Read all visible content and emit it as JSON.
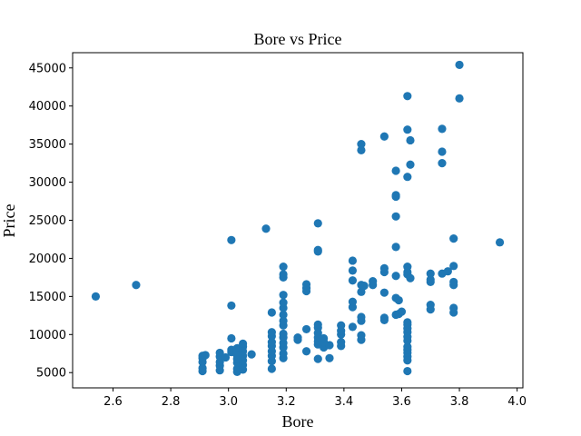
{
  "chart_data": {
    "type": "scatter",
    "title": "Bore vs Price",
    "xlabel": "Bore",
    "ylabel": "Price",
    "xlim": [
      2.46,
      4.02
    ],
    "ylim": [
      3000,
      47000
    ],
    "xticks": [
      "2.6",
      "2.8",
      "3.0",
      "3.2",
      "3.4",
      "3.6",
      "3.8",
      "4.0"
    ],
    "yticks": [
      "5000",
      "10000",
      "15000",
      "20000",
      "25000",
      "30000",
      "35000",
      "40000",
      "45000"
    ],
    "grid": false,
    "marker_color": "#1f77b4",
    "points": [
      [
        2.54,
        15000
      ],
      [
        2.68,
        16500
      ],
      [
        2.91,
        5200
      ],
      [
        2.91,
        5600
      ],
      [
        2.91,
        6400
      ],
      [
        2.91,
        6900
      ],
      [
        2.91,
        7200
      ],
      [
        2.92,
        7300
      ],
      [
        2.97,
        5300
      ],
      [
        2.97,
        5900
      ],
      [
        2.97,
        6400
      ],
      [
        2.97,
        7100
      ],
      [
        2.97,
        7600
      ],
      [
        2.99,
        7000
      ],
      [
        3.01,
        13800
      ],
      [
        3.01,
        22400
      ],
      [
        3.01,
        9500
      ],
      [
        3.01,
        7700
      ],
      [
        3.01,
        8000
      ],
      [
        3.03,
        5100
      ],
      [
        3.03,
        5500
      ],
      [
        3.03,
        6300
      ],
      [
        3.03,
        6800
      ],
      [
        3.03,
        7300
      ],
      [
        3.03,
        7800
      ],
      [
        3.03,
        8200
      ],
      [
        3.05,
        5400
      ],
      [
        3.05,
        6000
      ],
      [
        3.05,
        6600
      ],
      [
        3.05,
        7200
      ],
      [
        3.05,
        7800
      ],
      [
        3.05,
        8400
      ],
      [
        3.05,
        8800
      ],
      [
        3.08,
        7400
      ],
      [
        3.13,
        23900
      ],
      [
        3.15,
        5500
      ],
      [
        3.15,
        6500
      ],
      [
        3.15,
        7200
      ],
      [
        3.15,
        7800
      ],
      [
        3.15,
        8500
      ],
      [
        3.15,
        9000
      ],
      [
        3.15,
        9800
      ],
      [
        3.15,
        10300
      ],
      [
        3.15,
        12900
      ],
      [
        3.19,
        6900
      ],
      [
        3.19,
        7500
      ],
      [
        3.19,
        8300
      ],
      [
        3.19,
        8900
      ],
      [
        3.19,
        9600
      ],
      [
        3.19,
        10100
      ],
      [
        3.19,
        11200
      ],
      [
        3.19,
        11800
      ],
      [
        3.19,
        12600
      ],
      [
        3.19,
        13500
      ],
      [
        3.19,
        14200
      ],
      [
        3.19,
        15200
      ],
      [
        3.19,
        17500
      ],
      [
        3.19,
        17900
      ],
      [
        3.19,
        18900
      ],
      [
        3.24,
        9300
      ],
      [
        3.24,
        9600
      ],
      [
        3.27,
        7800
      ],
      [
        3.27,
        10700
      ],
      [
        3.27,
        15700
      ],
      [
        3.27,
        16100
      ],
      [
        3.27,
        16600
      ],
      [
        3.31,
        6800
      ],
      [
        3.31,
        8700
      ],
      [
        3.31,
        9100
      ],
      [
        3.31,
        9600
      ],
      [
        3.31,
        10200
      ],
      [
        3.31,
        10900
      ],
      [
        3.31,
        11300
      ],
      [
        3.31,
        20900
      ],
      [
        3.31,
        21100
      ],
      [
        3.31,
        24600
      ],
      [
        3.33,
        8300
      ],
      [
        3.33,
        9000
      ],
      [
        3.33,
        9500
      ],
      [
        3.35,
        6900
      ],
      [
        3.35,
        8600
      ],
      [
        3.39,
        8500
      ],
      [
        3.39,
        9000
      ],
      [
        3.39,
        10000
      ],
      [
        3.39,
        10500
      ],
      [
        3.39,
        11200
      ],
      [
        3.43,
        11000
      ],
      [
        3.43,
        13600
      ],
      [
        3.43,
        14300
      ],
      [
        3.43,
        17100
      ],
      [
        3.43,
        18400
      ],
      [
        3.43,
        19700
      ],
      [
        3.46,
        9300
      ],
      [
        3.46,
        9900
      ],
      [
        3.46,
        11800
      ],
      [
        3.46,
        12300
      ],
      [
        3.46,
        15600
      ],
      [
        3.46,
        16500
      ],
      [
        3.46,
        34200
      ],
      [
        3.46,
        35000
      ],
      [
        3.47,
        16400
      ],
      [
        3.5,
        16500
      ],
      [
        3.5,
        17000
      ],
      [
        3.54,
        11900
      ],
      [
        3.54,
        12200
      ],
      [
        3.54,
        15500
      ],
      [
        3.54,
        18200
      ],
      [
        3.54,
        18700
      ],
      [
        3.54,
        36000
      ],
      [
        3.58,
        12600
      ],
      [
        3.58,
        14800
      ],
      [
        3.58,
        17700
      ],
      [
        3.58,
        21500
      ],
      [
        3.58,
        25500
      ],
      [
        3.58,
        28100
      ],
      [
        3.58,
        28300
      ],
      [
        3.58,
        31500
      ],
      [
        3.59,
        12700
      ],
      [
        3.59,
        14500
      ],
      [
        3.6,
        13000
      ],
      [
        3.62,
        5200
      ],
      [
        3.62,
        6600
      ],
      [
        3.62,
        7100
      ],
      [
        3.62,
        7600
      ],
      [
        3.62,
        8000
      ],
      [
        3.62,
        8400
      ],
      [
        3.62,
        9200
      ],
      [
        3.62,
        9700
      ],
      [
        3.62,
        10300
      ],
      [
        3.62,
        10800
      ],
      [
        3.62,
        11300
      ],
      [
        3.62,
        11600
      ],
      [
        3.62,
        17900
      ],
      [
        3.62,
        18200
      ],
      [
        3.62,
        18900
      ],
      [
        3.62,
        30700
      ],
      [
        3.62,
        36900
      ],
      [
        3.62,
        41300
      ],
      [
        3.63,
        17400
      ],
      [
        3.63,
        32300
      ],
      [
        3.63,
        35500
      ],
      [
        3.7,
        13300
      ],
      [
        3.7,
        13900
      ],
      [
        3.7,
        16900
      ],
      [
        3.7,
        17200
      ],
      [
        3.7,
        18000
      ],
      [
        3.74,
        18000
      ],
      [
        3.74,
        32500
      ],
      [
        3.74,
        34000
      ],
      [
        3.74,
        37000
      ],
      [
        3.76,
        18300
      ],
      [
        3.78,
        12900
      ],
      [
        3.78,
        13500
      ],
      [
        3.78,
        16500
      ],
      [
        3.78,
        16900
      ],
      [
        3.78,
        19000
      ],
      [
        3.78,
        22600
      ],
      [
        3.8,
        41000
      ],
      [
        3.8,
        45400
      ],
      [
        3.94,
        22100
      ]
    ]
  }
}
